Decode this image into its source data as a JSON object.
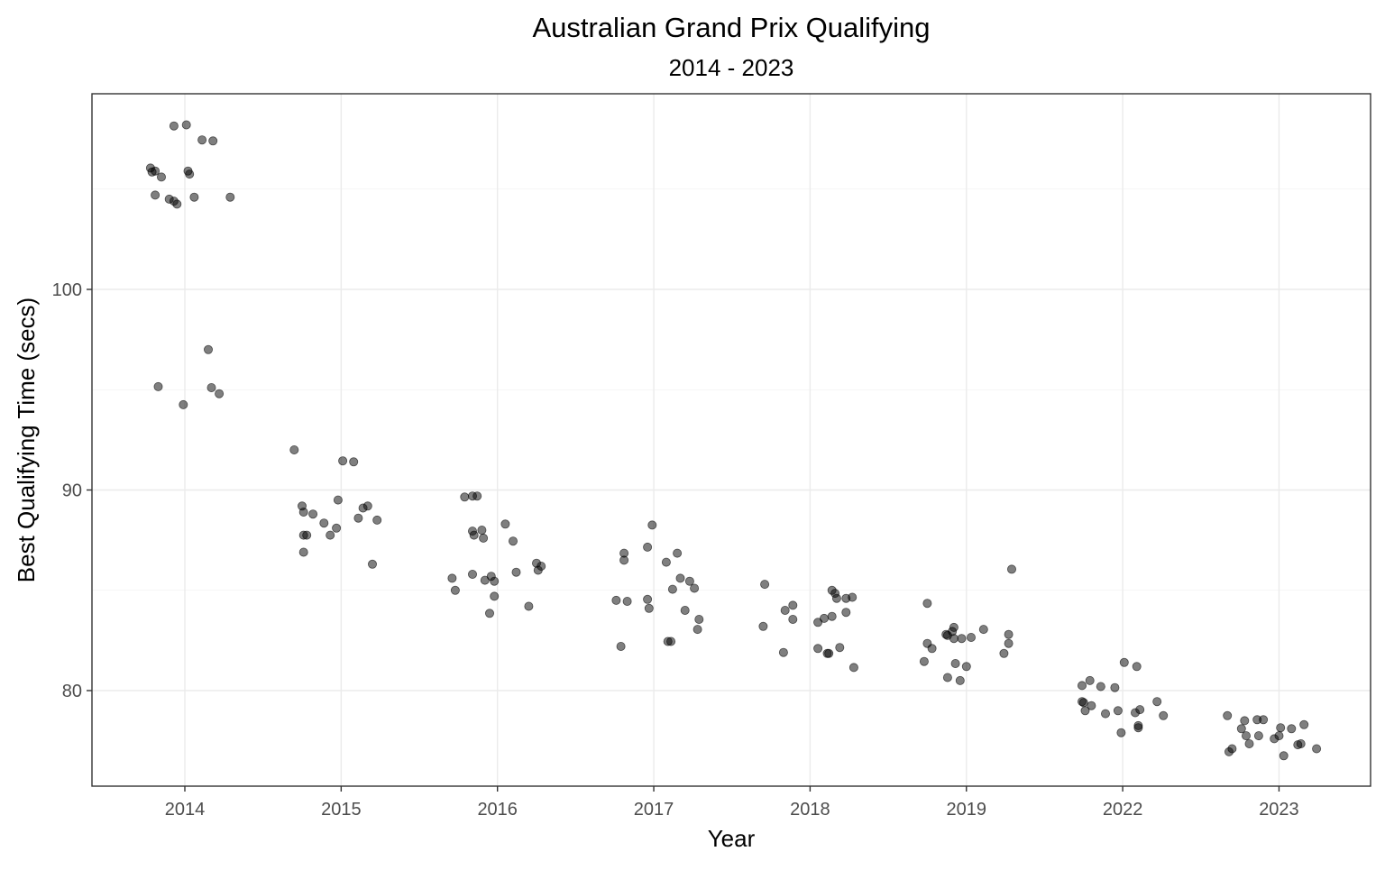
{
  "chart_data": {
    "type": "scatter",
    "title": "Australian Grand Prix Qualifying",
    "subtitle": "2014 - 2023",
    "xlabel": "Year",
    "ylabel": "Best Qualifying Time (secs)",
    "categories": [
      "2014",
      "2015",
      "2016",
      "2017",
      "2018",
      "2019",
      "2022",
      "2023"
    ],
    "yticks": [
      80,
      90,
      100
    ],
    "ylim": [
      75.1,
      109.8
    ],
    "grid": true,
    "point_color": "#000000",
    "point_alpha": 0.5,
    "series": [
      {
        "name": "2014",
        "points": [
          [
            -0.22,
            106.05
          ],
          [
            -0.21,
            105.85
          ],
          [
            -0.19,
            105.9
          ],
          [
            -0.19,
            104.7
          ],
          [
            -0.15,
            105.6
          ],
          [
            -0.1,
            104.5
          ],
          [
            -0.07,
            104.4
          ],
          [
            -0.05,
            104.25
          ],
          [
            -0.07,
            108.15
          ],
          [
            0.01,
            108.2
          ],
          [
            0.02,
            105.9
          ],
          [
            0.03,
            105.75
          ],
          [
            0.06,
            104.6
          ],
          [
            0.11,
            107.45
          ],
          [
            0.18,
            107.4
          ],
          [
            0.29,
            104.6
          ],
          [
            -0.17,
            95.15
          ],
          [
            -0.01,
            94.25
          ],
          [
            0.15,
            97.0
          ],
          [
            0.17,
            95.1
          ],
          [
            0.22,
            94.8
          ]
        ]
      },
      {
        "name": "2015",
        "points": [
          [
            -0.3,
            92.0
          ],
          [
            -0.25,
            89.2
          ],
          [
            -0.24,
            88.9
          ],
          [
            -0.24,
            87.75
          ],
          [
            -0.22,
            87.75
          ],
          [
            -0.24,
            86.9
          ],
          [
            -0.18,
            88.8
          ],
          [
            -0.11,
            88.35
          ],
          [
            -0.07,
            87.75
          ],
          [
            -0.03,
            88.1
          ],
          [
            -0.02,
            89.5
          ],
          [
            0.01,
            91.45
          ],
          [
            0.08,
            91.4
          ],
          [
            0.11,
            88.6
          ],
          [
            0.14,
            89.1
          ],
          [
            0.17,
            89.2
          ],
          [
            0.2,
            86.3
          ],
          [
            0.23,
            88.5
          ]
        ]
      },
      {
        "name": "2016",
        "points": [
          [
            -0.29,
            85.6
          ],
          [
            -0.27,
            85.0
          ],
          [
            -0.21,
            89.65
          ],
          [
            -0.16,
            89.7
          ],
          [
            -0.13,
            89.7
          ],
          [
            -0.16,
            87.95
          ],
          [
            -0.15,
            87.75
          ],
          [
            -0.16,
            85.8
          ],
          [
            -0.1,
            88.0
          ],
          [
            -0.09,
            87.6
          ],
          [
            -0.08,
            85.5
          ],
          [
            -0.04,
            85.7
          ],
          [
            -0.05,
            83.85
          ],
          [
            -0.02,
            85.45
          ],
          [
            -0.02,
            84.7
          ],
          [
            0.05,
            88.3
          ],
          [
            0.1,
            87.45
          ],
          [
            0.12,
            85.9
          ],
          [
            0.2,
            84.2
          ],
          [
            0.25,
            86.35
          ],
          [
            0.26,
            86.0
          ],
          [
            0.28,
            86.2
          ]
        ]
      },
      {
        "name": "2017",
        "points": [
          [
            -0.24,
            84.5
          ],
          [
            -0.21,
            82.2
          ],
          [
            -0.19,
            86.85
          ],
          [
            -0.19,
            86.5
          ],
          [
            -0.17,
            84.45
          ],
          [
            -0.04,
            87.15
          ],
          [
            -0.04,
            84.55
          ],
          [
            -0.03,
            84.1
          ],
          [
            -0.01,
            88.25
          ],
          [
            0.08,
            86.4
          ],
          [
            0.09,
            82.45
          ],
          [
            0.11,
            82.45
          ],
          [
            0.12,
            85.05
          ],
          [
            0.15,
            86.85
          ],
          [
            0.17,
            85.6
          ],
          [
            0.2,
            84.0
          ],
          [
            0.23,
            85.45
          ],
          [
            0.26,
            85.1
          ],
          [
            0.28,
            83.05
          ],
          [
            0.29,
            83.55
          ]
        ]
      },
      {
        "name": "2018",
        "points": [
          [
            -0.3,
            83.2
          ],
          [
            -0.29,
            85.3
          ],
          [
            -0.17,
            81.9
          ],
          [
            -0.16,
            84.0
          ],
          [
            -0.11,
            84.25
          ],
          [
            -0.11,
            83.55
          ],
          [
            0.05,
            83.4
          ],
          [
            0.05,
            82.1
          ],
          [
            0.09,
            83.6
          ],
          [
            0.11,
            81.85
          ],
          [
            0.12,
            81.85
          ],
          [
            0.14,
            85.0
          ],
          [
            0.14,
            83.7
          ],
          [
            0.16,
            84.85
          ],
          [
            0.17,
            84.6
          ],
          [
            0.19,
            82.15
          ],
          [
            0.23,
            84.6
          ],
          [
            0.23,
            83.9
          ],
          [
            0.27,
            84.65
          ],
          [
            0.28,
            81.15
          ]
        ]
      },
      {
        "name": "2019",
        "points": [
          [
            -0.27,
            81.45
          ],
          [
            -0.25,
            84.35
          ],
          [
            -0.25,
            82.35
          ],
          [
            -0.22,
            82.1
          ],
          [
            -0.13,
            82.8
          ],
          [
            -0.12,
            82.75
          ],
          [
            -0.12,
            80.65
          ],
          [
            -0.09,
            82.95
          ],
          [
            -0.08,
            83.15
          ],
          [
            -0.08,
            82.6
          ],
          [
            -0.07,
            81.35
          ],
          [
            -0.04,
            80.5
          ],
          [
            -0.03,
            82.6
          ],
          [
            0.0,
            81.2
          ],
          [
            0.03,
            82.65
          ],
          [
            0.11,
            83.05
          ],
          [
            0.24,
            81.85
          ],
          [
            0.27,
            82.8
          ],
          [
            0.27,
            82.35
          ],
          [
            0.29,
            86.05
          ]
        ]
      },
      {
        "name": "2022",
        "points": [
          [
            -0.26,
            80.25
          ],
          [
            -0.26,
            79.45
          ],
          [
            -0.25,
            79.4
          ],
          [
            -0.24,
            79.0
          ],
          [
            -0.21,
            80.5
          ],
          [
            -0.2,
            79.25
          ],
          [
            -0.14,
            80.2
          ],
          [
            -0.11,
            78.85
          ],
          [
            -0.05,
            80.15
          ],
          [
            -0.03,
            79.0
          ],
          [
            -0.01,
            77.9
          ],
          [
            0.01,
            81.4
          ],
          [
            0.08,
            78.9
          ],
          [
            0.09,
            81.2
          ],
          [
            0.1,
            78.25
          ],
          [
            0.11,
            79.05
          ],
          [
            0.1,
            78.15
          ],
          [
            0.22,
            79.45
          ],
          [
            0.26,
            78.75
          ]
        ]
      },
      {
        "name": "2023",
        "points": [
          [
            -0.33,
            78.75
          ],
          [
            -0.32,
            76.95
          ],
          [
            -0.3,
            77.1
          ],
          [
            -0.24,
            78.1
          ],
          [
            -0.22,
            78.5
          ],
          [
            -0.21,
            77.75
          ],
          [
            -0.19,
            77.35
          ],
          [
            -0.14,
            78.55
          ],
          [
            -0.13,
            77.75
          ],
          [
            -0.1,
            78.55
          ],
          [
            -0.03,
            77.6
          ],
          [
            0.0,
            77.75
          ],
          [
            0.01,
            78.15
          ],
          [
            0.03,
            76.75
          ],
          [
            0.08,
            78.1
          ],
          [
            0.12,
            77.3
          ],
          [
            0.14,
            77.35
          ],
          [
            0.16,
            78.3
          ],
          [
            0.24,
            77.1
          ]
        ]
      }
    ]
  }
}
